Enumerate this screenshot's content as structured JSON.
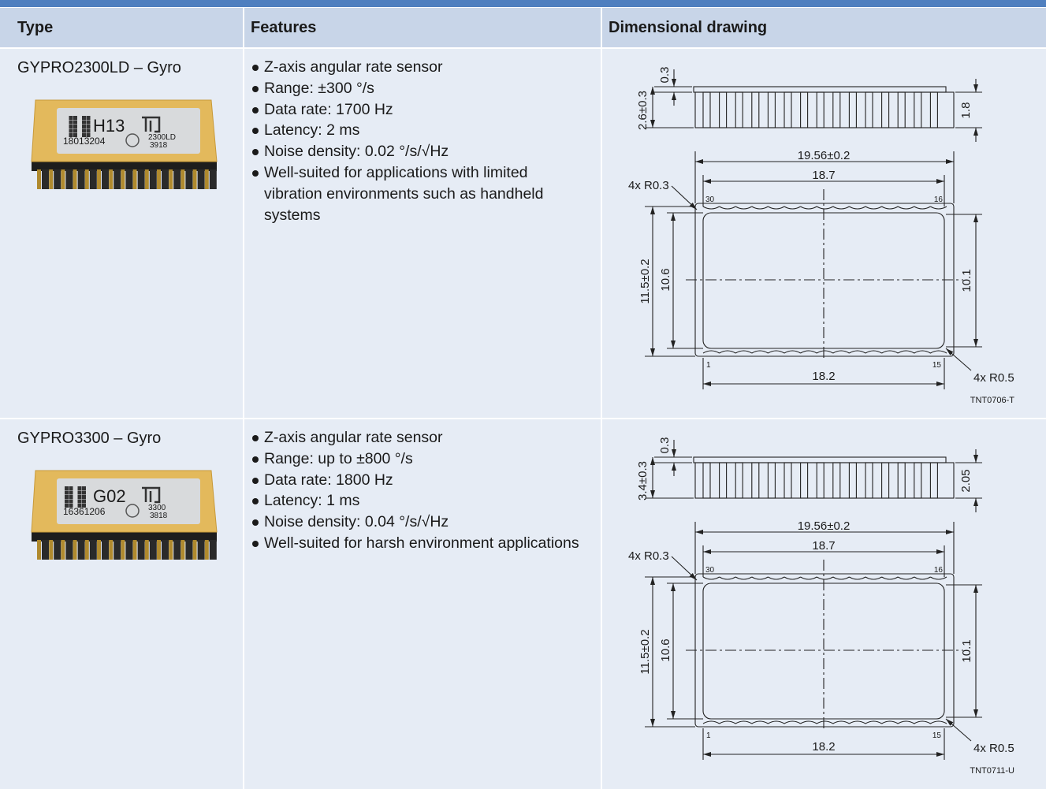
{
  "table": {
    "headers": [
      "Type",
      "Features",
      "Dimensional drawing"
    ],
    "rows": [
      {
        "type": "GYPRO2300LD – Gyro",
        "chip": {
          "code": "H13",
          "serial": "18013204",
          "model": "2300LD",
          "lot": "3918"
        },
        "features": [
          "Z-axis angular rate sensor",
          "Range: ±300 °/s",
          "Data rate: 1700 Hz",
          "Latency: 2 ms",
          "Noise density: 0.02 °/s/√Hz",
          "Well-suited for applications with limited vibration environments such as handheld systems"
        ],
        "drawing": {
          "side_top": "0.3",
          "side_height": "2.6±0.3",
          "side_pin": "1.8",
          "width_outer": "19.56±0.2",
          "width_inner": "18.7",
          "corner_top": "4x R0.3",
          "pin_top_left": "30",
          "pin_top_right": "16",
          "height_outer": "11.5±0.2",
          "height_inner": "10.6",
          "height_right": "10.1",
          "pin_bottom_left": "1",
          "pin_bottom_right": "15",
          "width_bottom": "18.2",
          "corner_bottom": "4x R0.5",
          "ref": "TNT0706-T"
        }
      },
      {
        "type": "GYPRO3300 – Gyro",
        "chip": {
          "code": "G02",
          "serial": "16361206",
          "model": "3300",
          "lot": "3818"
        },
        "features": [
          "Z-axis angular rate sensor",
          "Range: up to ±800 °/s",
          "Data rate: 1800 Hz",
          "Latency: 1 ms",
          "Noise density: 0.04 °/s/√Hz",
          "Well-suited for harsh environment applications"
        ],
        "drawing": {
          "side_top": "0.3",
          "side_height": "3.4±0.3",
          "side_pin": "2.05",
          "width_outer": "19.56±0.2",
          "width_inner": "18.7",
          "corner_top": "4x R0.3",
          "pin_top_left": "30",
          "pin_top_right": "16",
          "height_outer": "11.5±0.2",
          "height_inner": "10.6",
          "height_right": "10.1",
          "pin_bottom_left": "1",
          "pin_bottom_right": "15",
          "width_bottom": "18.2",
          "corner_bottom": "4x R0.5",
          "ref": "TNT0711-U"
        }
      }
    ]
  }
}
